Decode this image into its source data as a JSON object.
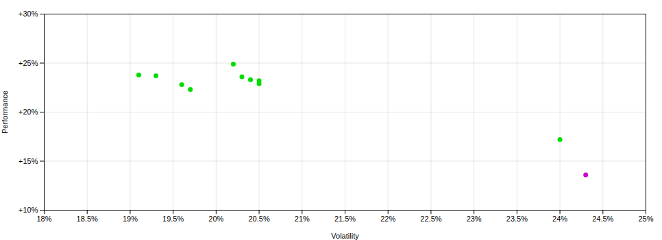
{
  "chart_data": {
    "type": "scatter",
    "xlabel": "Volatility",
    "ylabel": "Performance",
    "xlim": [
      0.18,
      0.25
    ],
    "ylim": [
      0.1,
      0.3
    ],
    "xticks": [
      {
        "value": 0.18,
        "label": "18%"
      },
      {
        "value": 0.185,
        "label": "18.5%"
      },
      {
        "value": 0.19,
        "label": "19%"
      },
      {
        "value": 0.195,
        "label": "19.5%"
      },
      {
        "value": 0.2,
        "label": "20%"
      },
      {
        "value": 0.205,
        "label": "20.5%"
      },
      {
        "value": 0.21,
        "label": "21%"
      },
      {
        "value": 0.215,
        "label": "21.5%"
      },
      {
        "value": 0.22,
        "label": "22%"
      },
      {
        "value": 0.225,
        "label": "22.5%"
      },
      {
        "value": 0.23,
        "label": "23%"
      },
      {
        "value": 0.235,
        "label": "23.5%"
      },
      {
        "value": 0.24,
        "label": "24%"
      },
      {
        "value": 0.245,
        "label": "24.5%"
      },
      {
        "value": 0.25,
        "label": "25%"
      }
    ],
    "yticks": [
      {
        "value": 0.1,
        "label": "+10%"
      },
      {
        "value": 0.15,
        "label": "+15%"
      },
      {
        "value": 0.2,
        "label": "+20%"
      },
      {
        "value": 0.25,
        "label": "+25%"
      },
      {
        "value": 0.3,
        "label": "+30%"
      }
    ],
    "grid": true,
    "series": [
      {
        "color": "#00dd00",
        "x": [
          0.191,
          0.193,
          0.196,
          0.197,
          0.202,
          0.203,
          0.204,
          0.205,
          0.205,
          0.24
        ],
        "values": [
          0.238,
          0.237,
          0.228,
          0.223,
          0.249,
          0.236,
          0.233,
          0.229,
          0.232,
          0.172
        ]
      },
      {
        "color": "#cc00cc",
        "x": [
          0.243
        ],
        "values": [
          0.136
        ]
      }
    ]
  }
}
